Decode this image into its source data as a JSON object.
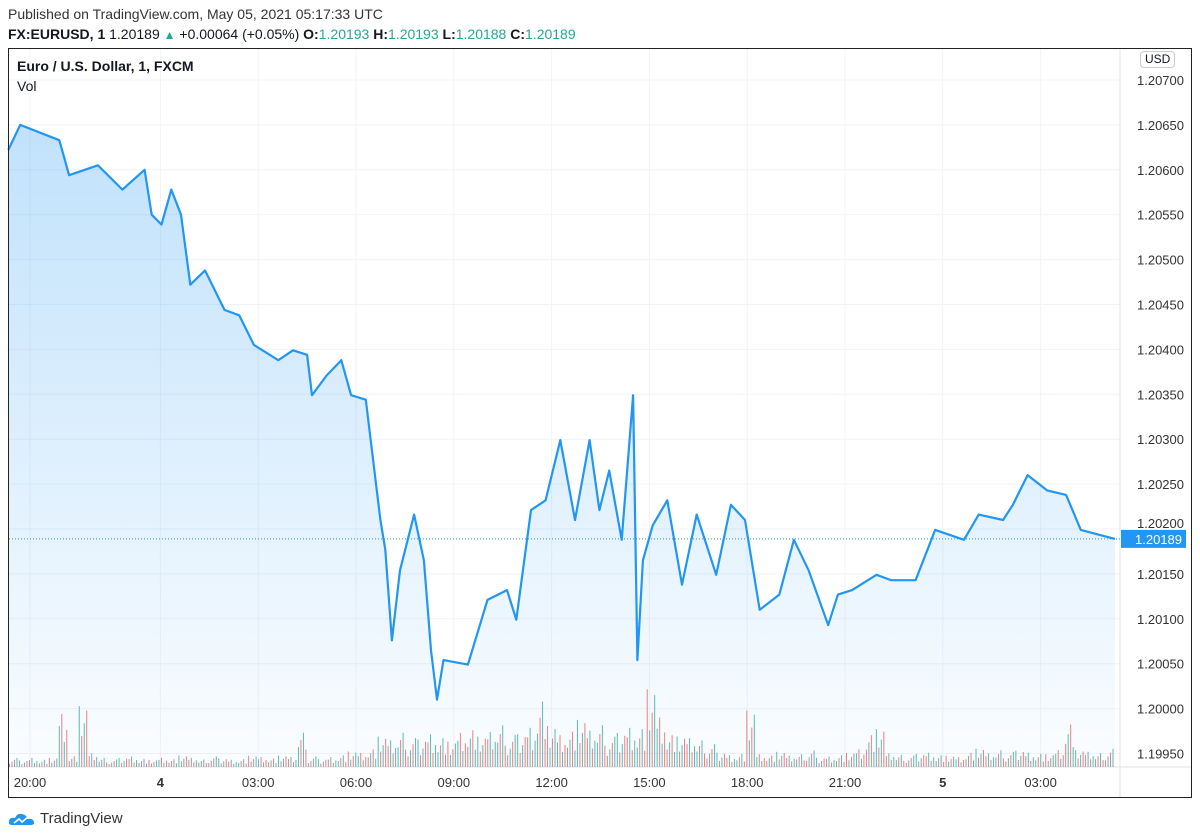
{
  "header": {
    "published": "Published on TradingView.com, May 05, 2021 05:17:33 UTC",
    "symbol": "FX:EURUSD, 1",
    "last": "1.20189",
    "change": "+0.00064 (+0.05%)",
    "open_label": "O:",
    "open": "1.20193",
    "high_label": "H:",
    "high": "1.20193",
    "low_label": "L:",
    "low": "1.20188",
    "close_label": "C:",
    "close": "1.20189"
  },
  "legend": {
    "title": "Euro / U.S. Dollar, 1, FXCM",
    "volume": "Vol"
  },
  "currency": "USD",
  "footer": {
    "brand": "TradingView"
  },
  "colors": {
    "line": "#2196f3",
    "up": "#26a69a",
    "down": "#ef5350",
    "last_price_bg": "#2196f3"
  },
  "chart_data": {
    "type": "area",
    "ylim": [
      1.19925,
      1.2072
    ],
    "y_ticks": [
      "1.20700",
      "1.20650",
      "1.20600",
      "1.20550",
      "1.20500",
      "1.20450",
      "1.20400",
      "1.20350",
      "1.20300",
      "1.20250",
      "1.20200",
      "1.20150",
      "1.20100",
      "1.20050",
      "1.20000",
      "1.19950"
    ],
    "x_ticks": [
      {
        "label": "20:00",
        "t": "05-03 20:00",
        "bold": false
      },
      {
        "label": "4",
        "t": "05-04 00:00",
        "bold": true
      },
      {
        "label": "03:00",
        "t": "05-04 03:00",
        "bold": false
      },
      {
        "label": "06:00",
        "t": "05-04 06:00",
        "bold": false
      },
      {
        "label": "09:00",
        "t": "05-04 09:00",
        "bold": false
      },
      {
        "label": "12:00",
        "t": "05-04 12:00",
        "bold": false
      },
      {
        "label": "15:00",
        "t": "05-04 15:00",
        "bold": false
      },
      {
        "label": "18:00",
        "t": "05-04 18:00",
        "bold": false
      },
      {
        "label": "21:00",
        "t": "05-04 21:00",
        "bold": false
      },
      {
        "label": "5",
        "t": "05-05 00:00",
        "bold": true
      },
      {
        "label": "03:00",
        "t": "05-05 03:00",
        "bold": false
      }
    ],
    "last_price": 1.20189,
    "last_price_label": "1.20189",
    "series": [
      [
        "05-03 19:20",
        1.20622
      ],
      [
        "05-03 19:42",
        1.2065
      ],
      [
        "05-03 20:54",
        1.20633
      ],
      [
        "05-03 21:12",
        1.20594
      ],
      [
        "05-03 22:05",
        1.20605
      ],
      [
        "05-03 22:50",
        1.20578
      ],
      [
        "05-03 23:31",
        1.206
      ],
      [
        "05-03 23:44",
        1.2055
      ],
      [
        "05-04 00:02",
        1.20539
      ],
      [
        "05-04 00:20",
        1.20578
      ],
      [
        "05-04 00:38",
        1.2055
      ],
      [
        "05-04 00:55",
        1.20472
      ],
      [
        "05-04 01:22",
        1.20488
      ],
      [
        "05-04 01:58",
        1.20444
      ],
      [
        "05-04 02:25",
        1.20438
      ],
      [
        "05-04 02:52",
        1.20405
      ],
      [
        "05-04 03:37",
        1.20388
      ],
      [
        "05-04 04:04",
        1.20399
      ],
      [
        "05-04 04:30",
        1.20394
      ],
      [
        "05-04 04:39",
        1.20349
      ],
      [
        "05-04 05:06",
        1.20371
      ],
      [
        "05-04 05:33",
        1.20388
      ],
      [
        "05-04 05:51",
        1.20349
      ],
      [
        "05-04 06:18",
        1.20344
      ],
      [
        "05-04 06:27",
        1.20299
      ],
      [
        "05-04 06:45",
        1.2021
      ],
      [
        "05-04 06:54",
        1.20177
      ],
      [
        "05-04 07:06",
        1.20076
      ],
      [
        "05-04 07:21",
        1.20154
      ],
      [
        "05-04 07:47",
        1.20216
      ],
      [
        "05-04 08:05",
        1.20165
      ],
      [
        "05-04 08:18",
        1.20065
      ],
      [
        "05-04 08:29",
        1.2001
      ],
      [
        "05-04 08:41",
        1.20054
      ],
      [
        "05-04 09:26",
        1.20049
      ],
      [
        "05-04 10:02",
        1.20121
      ],
      [
        "05-04 10:38",
        1.20132
      ],
      [
        "05-04 10:55",
        1.20099
      ],
      [
        "05-04 11:22",
        1.20221
      ],
      [
        "05-04 11:49",
        1.20232
      ],
      [
        "05-04 12:16",
        1.20299
      ],
      [
        "05-04 12:43",
        1.2021
      ],
      [
        "05-04 13:10",
        1.20299
      ],
      [
        "05-04 13:28",
        1.20221
      ],
      [
        "05-04 13:46",
        1.20265
      ],
      [
        "05-04 14:09",
        1.20188
      ],
      [
        "05-04 14:30",
        1.20349
      ],
      [
        "05-04 14:38",
        1.20054
      ],
      [
        "05-04 14:48",
        1.20165
      ],
      [
        "05-04 15:06",
        1.20204
      ],
      [
        "05-04 15:33",
        1.20232
      ],
      [
        "05-04 16:00",
        1.20138
      ],
      [
        "05-04 16:27",
        1.20216
      ],
      [
        "05-04 17:03",
        1.20149
      ],
      [
        "05-04 17:30",
        1.20227
      ],
      [
        "05-04 17:56",
        1.2021
      ],
      [
        "05-04 18:23",
        1.2011
      ],
      [
        "05-04 18:59",
        1.20127
      ],
      [
        "05-04 19:26",
        1.20188
      ],
      [
        "05-04 19:53",
        1.20154
      ],
      [
        "05-04 20:29",
        1.20093
      ],
      [
        "05-04 20:47",
        1.20127
      ],
      [
        "05-04 21:13",
        1.20132
      ],
      [
        "05-04 21:58",
        1.20149
      ],
      [
        "05-04 22:25",
        1.20143
      ],
      [
        "05-04 23:10",
        1.20143
      ],
      [
        "05-04 23:46",
        1.20199
      ],
      [
        "05-05 00:39",
        1.20188
      ],
      [
        "05-05 01:06",
        1.20216
      ],
      [
        "05-05 01:51",
        1.2021
      ],
      [
        "05-05 02:09",
        1.20227
      ],
      [
        "05-05 02:36",
        1.2026
      ],
      [
        "05-05 03:12",
        1.20243
      ],
      [
        "05-05 03:47",
        1.20238
      ],
      [
        "05-05 04:14",
        1.20199
      ],
      [
        "05-05 05:17",
        1.20189
      ]
    ],
    "volume": [
      12,
      10,
      14,
      11,
      13,
      75,
      15,
      80,
      18,
      12,
      10,
      14,
      16,
      12,
      10,
      13,
      11,
      15,
      12,
      10,
      14,
      13,
      11,
      12,
      16,
      14,
      12,
      15,
      13,
      45,
      14,
      12,
      15,
      18,
      22,
      20,
      25,
      40,
      35,
      45,
      38,
      42,
      50,
      44,
      36,
      48,
      52,
      40,
      46,
      55,
      42,
      50,
      60,
      100,
      58,
      45,
      50,
      62,
      48,
      55,
      40,
      52,
      60,
      58,
      110,
      70,
      45,
      40,
      38,
      35,
      30,
      22,
      18,
      20,
      80,
      18,
      16,
      20,
      15,
      17,
      22,
      14,
      16,
      18,
      20,
      25,
      45,
      50,
      18,
      16,
      15,
      20,
      22,
      18,
      16,
      14,
      20,
      24,
      18,
      22,
      20,
      25,
      22,
      20,
      18,
      24,
      60,
      22,
      20,
      18,
      24
    ]
  }
}
